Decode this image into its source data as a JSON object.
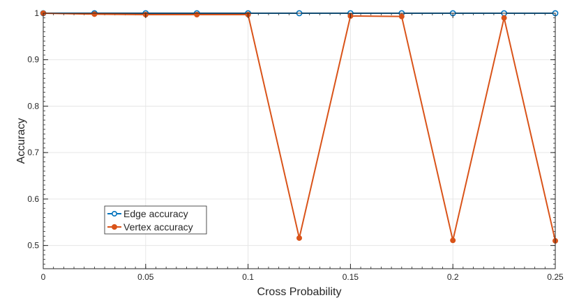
{
  "chart_data": {
    "type": "line",
    "xlabel": "Cross Probability",
    "ylabel": "Accuracy",
    "x": [
      0,
      0.025,
      0.05,
      0.075,
      0.1,
      0.125,
      0.15,
      0.175,
      0.2,
      0.225,
      0.25
    ],
    "xlim": [
      0,
      0.25
    ],
    "ylim": [
      0.45,
      1.0
    ],
    "xticks": [
      0,
      0.05,
      0.1,
      0.15,
      0.2,
      0.25
    ],
    "xtick_labels": [
      "0",
      "0.05",
      "0.1",
      "0.15",
      "0.2",
      "0.25"
    ],
    "yticks": [
      0.5,
      0.6,
      0.7,
      0.8,
      0.9,
      1.0
    ],
    "ytick_labels": [
      "0.5",
      "0.6",
      "0.7",
      "0.8",
      "0.9",
      "1"
    ],
    "grid": true,
    "legend_position": "lower-left",
    "series": [
      {
        "name": "Edge accuracy",
        "color": "#0072BD",
        "marker": "circle-open",
        "values": [
          1,
          1,
          1,
          1,
          1,
          1,
          1,
          1,
          1,
          1,
          1
        ]
      },
      {
        "name": "Vertex accuracy",
        "color": "#D95319",
        "marker": "circle-filled",
        "values": [
          1,
          0.998,
          0.997,
          0.997,
          0.997,
          0.516,
          0.994,
          0.993,
          0.511,
          0.99,
          0.51
        ]
      }
    ]
  }
}
